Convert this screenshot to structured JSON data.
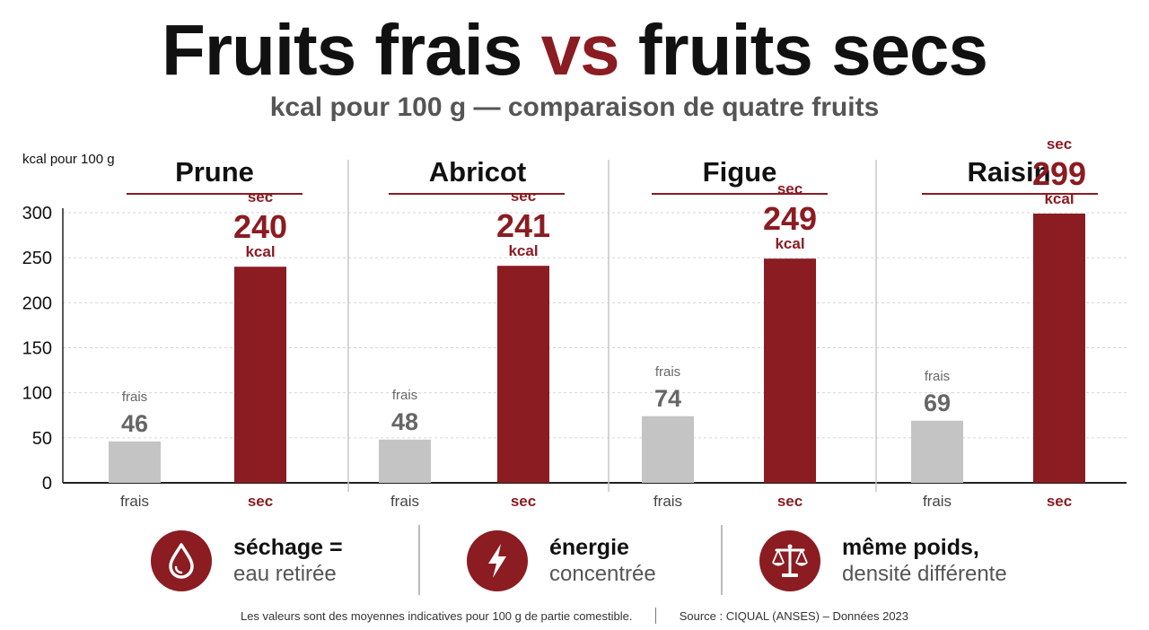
{
  "header": {
    "title_part1": "Fruits frais",
    "title_accent": "vs",
    "title_part2": "fruits secs",
    "subtitle": "kcal pour 100 g — comparaison de quatre fruits"
  },
  "colors": {
    "accent": "#8a1c22",
    "fresh_bar": "#c4c4c4",
    "fresh_text": "#666666",
    "dark_text": "#111111"
  },
  "chart_data": {
    "type": "bar",
    "ylabel": "kcal pour 100 g",
    "ylim": [
      0,
      300
    ],
    "yticks": [
      0,
      50,
      100,
      150,
      200,
      250,
      300
    ],
    "grid": true,
    "x_labels": {
      "fresh": "frais",
      "dry": "sec"
    },
    "value_unit": "kcal",
    "groups": [
      {
        "name": "Prune",
        "fresh": 46,
        "dry": 240
      },
      {
        "name": "Abricot",
        "fresh": 48,
        "dry": 241
      },
      {
        "name": "Figue",
        "fresh": 74,
        "dry": 249
      },
      {
        "name": "Raisin",
        "fresh": 69,
        "dry": 299
      }
    ]
  },
  "features": [
    {
      "icon": "water-drop-icon",
      "line1": "séchage =",
      "line2": "eau retirée"
    },
    {
      "icon": "lightning-icon",
      "line1": "énergie",
      "line2": "concentrée"
    },
    {
      "icon": "balance-scale-icon",
      "line1": "même poids,",
      "line2": "densité différente"
    }
  ],
  "footer": {
    "note": "Les valeurs sont des moyennes indicatives pour 100 g de partie comestible.",
    "source": "Source : CIQUAL (ANSES) – Données 2023"
  }
}
